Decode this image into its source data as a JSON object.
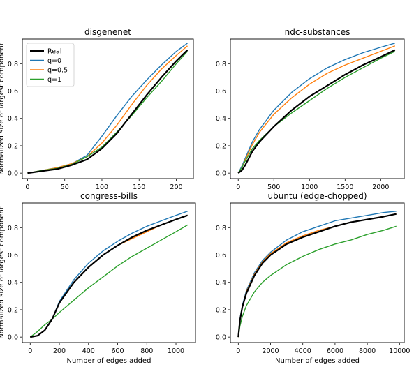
{
  "figure": {
    "ylabel": "Normalized size of largest component",
    "xlabel": "Number of edges added"
  },
  "legend": {
    "entries": [
      "Real",
      "q=0",
      "q=0.5",
      "q=1"
    ],
    "placement": "upper-left",
    "subplot": 0
  },
  "colors": {
    "Real": "#000000",
    "q=0": "#1f77b4",
    "q=0.5": "#ff7f0e",
    "q=1": "#2ca02c"
  },
  "chart_data": [
    {
      "type": "line",
      "title": "disgenenet",
      "xlabel": "",
      "ylabel": "Normalized size of largest component",
      "xlim": [
        -7,
        223
      ],
      "ylim": [
        -0.04,
        0.98
      ],
      "xticks": [
        0,
        50,
        100,
        150,
        200
      ],
      "yticks": [
        0.0,
        0.2,
        0.4,
        0.6,
        0.8
      ],
      "x": [
        0,
        20,
        40,
        60,
        80,
        100,
        120,
        140,
        160,
        180,
        200,
        215
      ],
      "series": [
        {
          "name": "Real",
          "values": [
            0.0,
            0.015,
            0.03,
            0.06,
            0.1,
            0.18,
            0.29,
            0.43,
            0.57,
            0.7,
            0.82,
            0.9
          ]
        },
        {
          "name": "q=0",
          "values": [
            0.0,
            0.02,
            0.04,
            0.07,
            0.13,
            0.27,
            0.42,
            0.56,
            0.68,
            0.79,
            0.89,
            0.95
          ]
        },
        {
          "name": "q=0.5",
          "values": [
            0.0,
            0.02,
            0.04,
            0.07,
            0.12,
            0.22,
            0.35,
            0.5,
            0.64,
            0.76,
            0.86,
            0.93
          ]
        },
        {
          "name": "q=1",
          "values": [
            0.0,
            0.02,
            0.035,
            0.065,
            0.12,
            0.19,
            0.3,
            0.42,
            0.55,
            0.67,
            0.8,
            0.89
          ]
        }
      ]
    },
    {
      "type": "line",
      "title": "ndc-substances",
      "xlabel": "",
      "ylabel": "",
      "xlim": [
        -110,
        2330
      ],
      "ylim": [
        -0.04,
        0.98
      ],
      "xticks": [
        0,
        500,
        1000,
        1500,
        2000
      ],
      "yticks": [
        0.0,
        0.2,
        0.4,
        0.6,
        0.8
      ],
      "x": [
        0,
        50,
        100,
        200,
        300,
        500,
        750,
        1000,
        1250,
        1500,
        1750,
        2000,
        2200
      ],
      "series": [
        {
          "name": "Real",
          "values": [
            0.0,
            0.02,
            0.06,
            0.16,
            0.23,
            0.34,
            0.46,
            0.56,
            0.64,
            0.72,
            0.79,
            0.85,
            0.9
          ]
        },
        {
          "name": "q=0",
          "values": [
            0.0,
            0.05,
            0.11,
            0.23,
            0.32,
            0.46,
            0.59,
            0.69,
            0.77,
            0.83,
            0.88,
            0.92,
            0.95
          ]
        },
        {
          "name": "q=0.5",
          "values": [
            0.0,
            0.04,
            0.1,
            0.21,
            0.3,
            0.43,
            0.55,
            0.65,
            0.73,
            0.79,
            0.84,
            0.89,
            0.93
          ]
        },
        {
          "name": "q=1",
          "values": [
            0.0,
            0.04,
            0.09,
            0.18,
            0.24,
            0.34,
            0.44,
            0.53,
            0.62,
            0.7,
            0.77,
            0.84,
            0.89
          ]
        }
      ]
    },
    {
      "type": "line",
      "title": "congress-bills",
      "xlabel": "Number of edges added",
      "ylabel": "Normalized size of largest component",
      "xlim": [
        -54,
        1134
      ],
      "ylim": [
        -0.04,
        0.98
      ],
      "xticks": [
        0,
        200,
        400,
        600,
        800,
        1000
      ],
      "yticks": [
        0.0,
        0.2,
        0.4,
        0.6,
        0.8
      ],
      "x": [
        0,
        50,
        100,
        150,
        200,
        300,
        400,
        500,
        600,
        700,
        800,
        900,
        1000,
        1080
      ],
      "series": [
        {
          "name": "Real",
          "values": [
            0.0,
            0.01,
            0.05,
            0.13,
            0.25,
            0.4,
            0.51,
            0.6,
            0.67,
            0.73,
            0.78,
            0.82,
            0.86,
            0.89
          ]
        },
        {
          "name": "q=0",
          "values": [
            0.0,
            0.01,
            0.05,
            0.13,
            0.26,
            0.42,
            0.54,
            0.63,
            0.7,
            0.76,
            0.81,
            0.85,
            0.89,
            0.92
          ]
        },
        {
          "name": "q=0.5",
          "values": [
            0.0,
            0.01,
            0.05,
            0.13,
            0.25,
            0.4,
            0.51,
            0.6,
            0.67,
            0.72,
            0.77,
            0.82,
            0.86,
            0.89
          ]
        },
        {
          "name": "q=1",
          "values": [
            0.0,
            0.04,
            0.09,
            0.13,
            0.18,
            0.27,
            0.36,
            0.44,
            0.52,
            0.59,
            0.65,
            0.71,
            0.77,
            0.82
          ]
        }
      ]
    },
    {
      "type": "line",
      "title": "ubuntu (edge-chopped)",
      "xlabel": "Number of edges added",
      "ylabel": "",
      "xlim": [
        -490,
        10290
      ],
      "ylim": [
        -0.04,
        0.98
      ],
      "xticks": [
        0,
        2000,
        4000,
        6000,
        8000,
        10000
      ],
      "yticks": [
        0.0,
        0.2,
        0.4,
        0.6,
        0.8
      ],
      "x": [
        0,
        100,
        250,
        500,
        1000,
        1500,
        2000,
        3000,
        4000,
        5000,
        6000,
        7000,
        8000,
        9000,
        9800
      ],
      "series": [
        {
          "name": "Real",
          "values": [
            0.0,
            0.12,
            0.22,
            0.32,
            0.45,
            0.54,
            0.6,
            0.68,
            0.73,
            0.77,
            0.81,
            0.84,
            0.86,
            0.88,
            0.9
          ]
        },
        {
          "name": "q=0",
          "values": [
            0.0,
            0.13,
            0.23,
            0.34,
            0.47,
            0.56,
            0.62,
            0.71,
            0.77,
            0.81,
            0.85,
            0.87,
            0.89,
            0.91,
            0.92
          ]
        },
        {
          "name": "q=0.5",
          "values": [
            0.0,
            0.12,
            0.22,
            0.33,
            0.46,
            0.55,
            0.61,
            0.69,
            0.74,
            0.78,
            0.81,
            0.84,
            0.86,
            0.88,
            0.9
          ]
        },
        {
          "name": "q=1",
          "values": [
            0.0,
            0.08,
            0.15,
            0.23,
            0.33,
            0.4,
            0.45,
            0.53,
            0.59,
            0.64,
            0.68,
            0.71,
            0.75,
            0.78,
            0.81
          ]
        }
      ]
    }
  ]
}
